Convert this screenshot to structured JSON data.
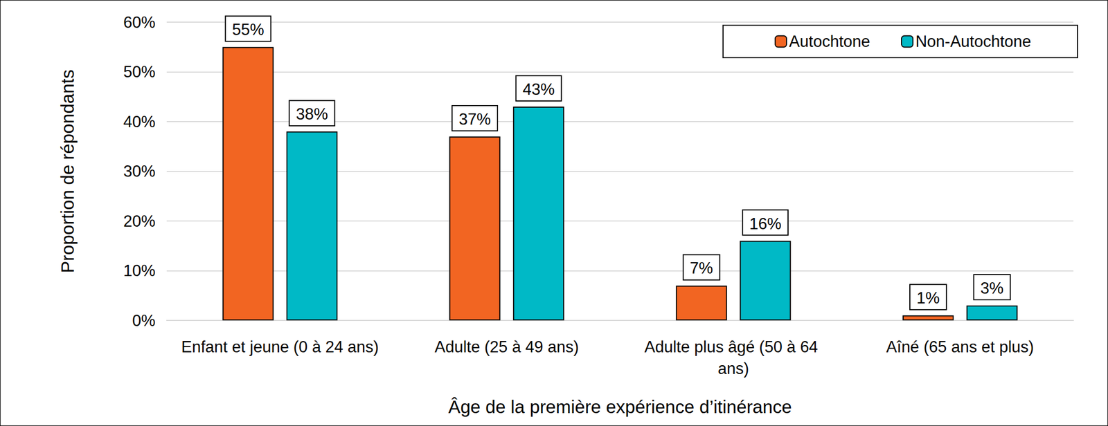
{
  "chart_data": {
    "type": "bar",
    "x_label": "Âge de la première expérience d’itinérance",
    "y_label": "Proportion de répondants",
    "categories": [
      "Enfant et jeune (0 à 24 ans)",
      "Adulte (25 à 49 ans)",
      "Adulte plus âgé (50 à 64 ans)",
      "Aîné (65 ans et plus)"
    ],
    "series": [
      {
        "name": "Autochtone",
        "color": "#F26522",
        "values": [
          55,
          37,
          7,
          1
        ],
        "value_labels": [
          "55%",
          "37%",
          "7%",
          "1%"
        ]
      },
      {
        "name": "Non-Autochtone",
        "color": "#00B9C6",
        "values": [
          38,
          43,
          16,
          3
        ],
        "value_labels": [
          "38%",
          "43%",
          "16%",
          "3%"
        ]
      }
    ],
    "ylim": [
      0,
      60
    ],
    "yticks": [
      {
        "value": 0,
        "label": "0%"
      },
      {
        "value": 10,
        "label": "10%"
      },
      {
        "value": 20,
        "label": "20%"
      },
      {
        "value": 30,
        "label": "30%"
      },
      {
        "value": 40,
        "label": "40%"
      },
      {
        "value": 50,
        "label": "50%"
      },
      {
        "value": 60,
        "label": "60%"
      }
    ],
    "grid": true,
    "legend": "upper right",
    "data_labels": true
  }
}
